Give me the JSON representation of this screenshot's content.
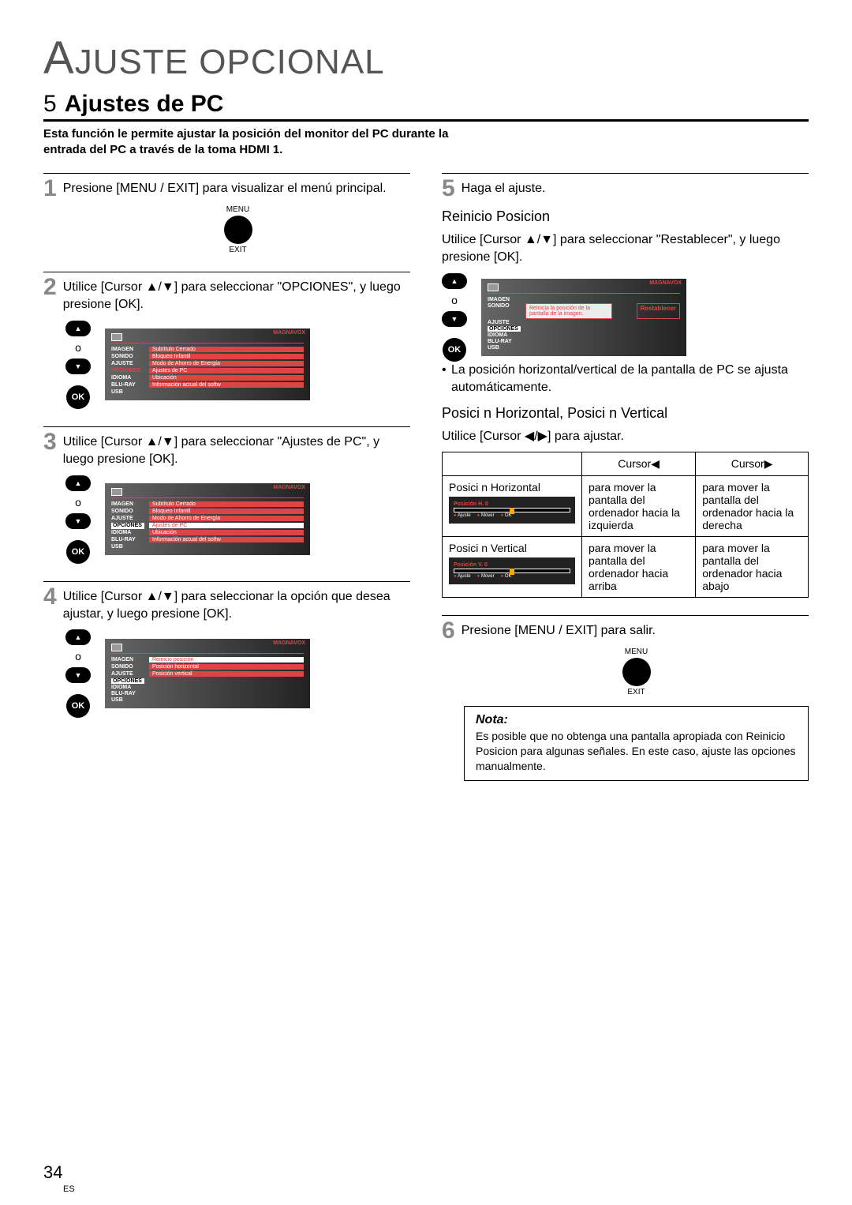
{
  "page": {
    "title_cap": "A",
    "title_rest": "JUSTE OPCIONAL",
    "section_num": "5",
    "section_title": "Ajustes de PC",
    "intro": "Esta función le permite ajustar la posición del monitor del PC durante la entrada del PC a través de la toma HDMI 1.",
    "pagenum": "34",
    "lang": "ES"
  },
  "left": {
    "step1": {
      "n": "1",
      "text": "Presione [MENU / EXIT] para visualizar el menú principal."
    },
    "menu_lbl": "MENU",
    "exit_lbl": "EXIT",
    "step2": {
      "n": "2",
      "text": "Utilice [Cursor ▲/▼] para seleccionar \"OPCIONES\", y luego presione [OK]."
    },
    "step3": {
      "n": "3",
      "text": "Utilice [Cursor ▲/▼] para seleccionar \"Ajustes de PC\", y luego presione [OK]."
    },
    "step4": {
      "n": "4",
      "text": "Utilice [Cursor ▲/▼] para seleccionar la opción que desea ajustar, y luego presione [OK]."
    }
  },
  "right": {
    "step5": {
      "n": "5",
      "text": "Haga el ajuste."
    },
    "reinicio_title": "Reinicio Posicion",
    "reinicio_text": "Utilice [Cursor ▲/▼] para seleccionar \"Restablecer\", y luego presione [OK].",
    "bullet": "La posición horizontal/vertical de la pantalla de PC se ajusta automáticamente.",
    "posicion_title": "Posici n Horizontal, Posici n Vertical",
    "posicion_text": "Utilice [Cursor ◀/▶] para ajustar.",
    "step6": {
      "n": "6",
      "text": "Presione [MENU / EXIT] para salir."
    },
    "note_title": "Nota:",
    "note_body": "Es posible que no obtenga una pantalla apropiada con Reinicio Posicion  para algunas señales. En este caso, ajuste las opciones manualmente."
  },
  "tv": {
    "brand": "MAGNAVOX",
    "menu1": [
      "IMAGEN",
      "SONIDO",
      "AJUSTE",
      "OPCIONES",
      "IDIOMA",
      "BLU-RAY",
      "USB"
    ],
    "opts_a": [
      "Subtítulo Cerrado",
      "Bloqueo Infantil",
      "Modo de Ahorro de Energía",
      "Ajustes de PC",
      "Ubicación",
      "Información actual del softw"
    ],
    "opts_c": [
      "Reinicio posición",
      "Posición horizontal",
      "Posición vertical"
    ],
    "reset_box": "Reinicia la posición de la pantalla de la imagen.",
    "reset_btn": "Restablecer",
    "slider_h": "Posición H.   0",
    "slider_v": "Posición V.   0",
    "leg_adjust": "Ajuste",
    "leg_move": "Mover",
    "leg_ok": "OK"
  },
  "table": {
    "h1": "Cursor◀",
    "h2": "Cursor▶",
    "r1_label": "Posici n Horizontal",
    "r1_c1": "para mover la pantalla del ordenador hacia la izquierda",
    "r1_c2": "para mover la pantalla del ordenador hacia la derecha",
    "r2_label": "Posici n Vertical",
    "r2_c1": "para mover la pantalla del ordenador hacia arriba",
    "r2_c2": "para mover la pantalla del ordenador hacia abajo"
  },
  "remote": {
    "mid": "o",
    "ok": "OK"
  }
}
